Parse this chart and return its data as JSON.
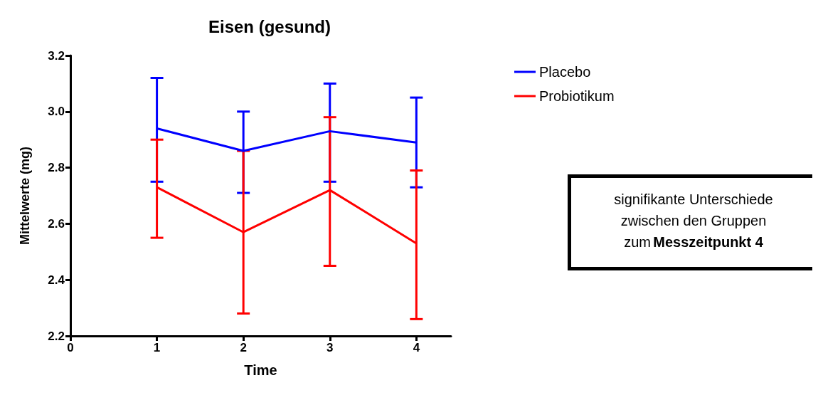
{
  "chart_data": {
    "type": "line",
    "title": "Eisen (gesund)",
    "xlabel": "Time",
    "ylabel": "Mittelwerte (mg)",
    "x": [
      1,
      2,
      3,
      4
    ],
    "series": [
      {
        "name": "Placebo",
        "color": "#0000ff",
        "values": [
          2.94,
          2.86,
          2.93,
          2.89
        ],
        "errors": [
          [
            2.75,
            3.12
          ],
          [
            2.71,
            3.0
          ],
          [
            2.75,
            3.1
          ],
          [
            2.73,
            3.05
          ]
        ]
      },
      {
        "name": "Probiotikum",
        "color": "#ff0000",
        "values": [
          2.73,
          2.57,
          2.72,
          2.53
        ],
        "errors": [
          [
            2.55,
            2.9
          ],
          [
            2.28,
            2.86
          ],
          [
            2.45,
            2.98
          ],
          [
            2.26,
            2.79
          ]
        ]
      }
    ],
    "xlim": [
      0,
      4.4
    ],
    "xticks": [
      0,
      1,
      2,
      3,
      4
    ],
    "ylim": [
      2.2,
      3.2
    ],
    "yticks": [
      2.2,
      2.4,
      2.6,
      2.8,
      {
        "value": 3,
        "label": "3.0"
      },
      3.2
    ],
    "legend": "top right",
    "grid": false,
    "marker": "none",
    "line_style": "solid",
    "annotations": [
      "signifikante Unterschiede",
      "zwischen den Gruppen",
      "zum",
      "Messzeitpunkt 4"
    ]
  }
}
